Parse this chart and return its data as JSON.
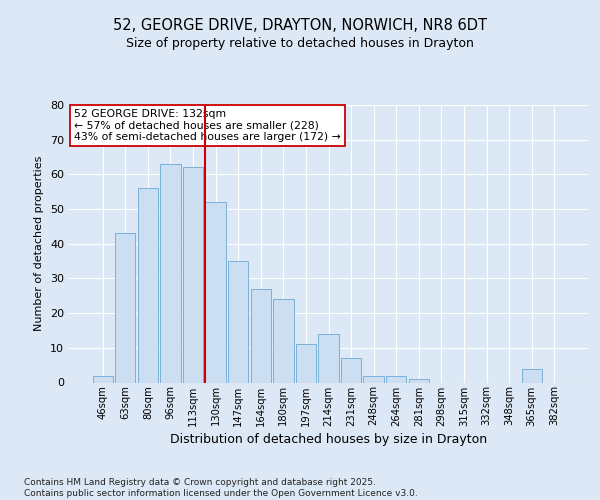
{
  "title1": "52, GEORGE DRIVE, DRAYTON, NORWICH, NR8 6DT",
  "title2": "Size of property relative to detached houses in Drayton",
  "xlabel": "Distribution of detached houses by size in Drayton",
  "ylabel": "Number of detached properties",
  "categories": [
    "46sqm",
    "63sqm",
    "80sqm",
    "96sqm",
    "113sqm",
    "130sqm",
    "147sqm",
    "164sqm",
    "180sqm",
    "197sqm",
    "214sqm",
    "231sqm",
    "248sqm",
    "264sqm",
    "281sqm",
    "298sqm",
    "315sqm",
    "332sqm",
    "348sqm",
    "365sqm",
    "382sqm"
  ],
  "values": [
    2,
    43,
    56,
    63,
    62,
    52,
    35,
    27,
    24,
    11,
    14,
    7,
    2,
    2,
    1,
    0,
    0,
    0,
    0,
    4,
    0
  ],
  "bar_color": "#ccdff2",
  "bar_edge_color": "#7ab0d8",
  "highlight_bar_index": 5,
  "highlight_line_color": "#cc0000",
  "ylim": [
    0,
    80
  ],
  "yticks": [
    0,
    10,
    20,
    30,
    40,
    50,
    60,
    70,
    80
  ],
  "annotation_text": "52 GEORGE DRIVE: 132sqm\n← 57% of detached houses are smaller (228)\n43% of semi-detached houses are larger (172) →",
  "annotation_box_facecolor": "#ffffff",
  "annotation_box_edgecolor": "#cc0000",
  "footer": "Contains HM Land Registry data © Crown copyright and database right 2025.\nContains public sector information licensed under the Open Government Licence v3.0.",
  "background_color": "#dce8f5",
  "plot_bg_color": "#dce8f5",
  "grid_color": "#ffffff",
  "title1_fontsize": 10.5,
  "title2_fontsize": 9
}
